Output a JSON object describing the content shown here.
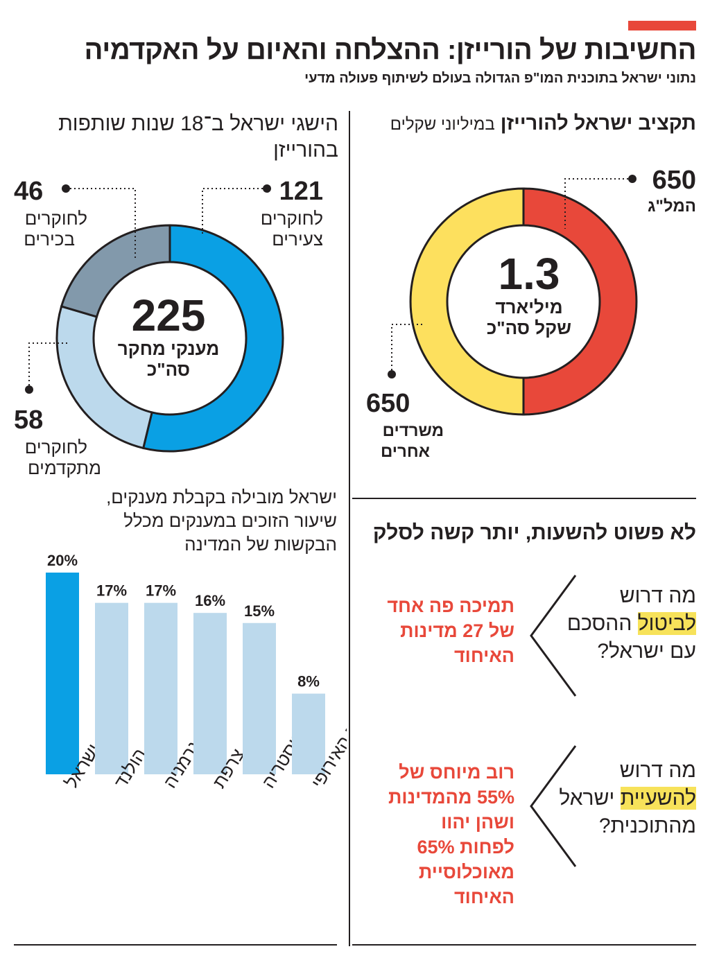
{
  "header": {
    "title": "החשיבות של הורייזן: ההצלחה והאיום על האקדמיה",
    "subtitle": "נתוני ישראל בתוכנית המו\"פ הגדולה בעולם לשיתוף פעולה מדעי"
  },
  "budget": {
    "title_bold": "תקציב ישראל להורייזן",
    "title_light": "במיליוני שקלים",
    "center_value": "1.3",
    "center_line1": "מיליארד",
    "center_line2": "שקל סה\"כ",
    "slice1_value": "650",
    "slice1_label": "המל\"ג",
    "slice2_value": "650",
    "slice2_label_line1": "משרדים",
    "slice2_label_line2": "אחרים",
    "colors": {
      "slice1": "#e8483a",
      "slice2": "#fde05e"
    }
  },
  "grants": {
    "title_line1": "הישגי ישראל ב־18 שנות שותפות",
    "title_line2": "בהורייזן",
    "center_value": "225",
    "center_line1": "מענקי מחקר",
    "center_line2": "סה\"כ",
    "young_value": "121",
    "young_line1": "לחוקרים",
    "young_line2": "צעירים",
    "senior_value": "46",
    "senior_line1": "לחוקרים",
    "senior_line2": "בכירים",
    "advanced_value": "58",
    "advanced_line1": "לחוקרים",
    "advanced_line2": "מתקדמים",
    "colors": {
      "young": "#0aa0e4",
      "advanced": "#bcd9ec",
      "senior": "#8299ab"
    }
  },
  "bars": {
    "title_line1": "ישראל מובילה בקבלת מענקים,",
    "title_line2": "שיעור הזוכים במענקים מכלל",
    "title_line3": "הבקשות של המדינה"
  },
  "chart_data": [
    {
      "type": "pie",
      "title": "תקציב ישראל להורייזן",
      "unit": "במיליוני שקלים",
      "categories": [
        "המל\"ג",
        "משרדים אחרים"
      ],
      "values": [
        650,
        650
      ]
    },
    {
      "type": "pie",
      "title": "הישגי ישראל ב־18 שנות שותפות בהורייזן",
      "categories": [
        "לחוקרים צעירים",
        "לחוקרים מתקדמים",
        "לחוקרים בכירים"
      ],
      "values": [
        121,
        58,
        46
      ]
    },
    {
      "type": "bar",
      "title": "ישראל מובילה בקבלת מענקים, שיעור הזוכים במענקים מכלל הבקשות של המדינה",
      "categories": [
        "ישראל",
        "הולנד",
        "גרמניה",
        "צרפת",
        "אוסטריה",
        "ממוצע באיחוד האירופי"
      ],
      "values": [
        20,
        17,
        17,
        16,
        15,
        8
      ],
      "value_labels": [
        "20%",
        "17%",
        "17%",
        "16%",
        "15%",
        "8%"
      ],
      "ylim": [
        0,
        20
      ],
      "colors": [
        "#0aa0e4",
        "#bcd9ec",
        "#bcd9ec",
        "#bcd9ec",
        "#bcd9ec",
        "#bcd9ec"
      ]
    }
  ],
  "sanctions": {
    "title": "לא פשוט להשעות, יותר קשה לסלק",
    "q1_line1": "מה דרוש",
    "q1_highlight": "לביטול",
    "q1_line2_rest": "ההסכם",
    "q1_line3": "עם ישראל?",
    "a1_line1": "תמיכה פה אחד",
    "a1_line2": "של 27 מדינות",
    "a1_line3": "האיחוד",
    "q2_line1": "מה דרוש",
    "q2_highlight": "להשעיית",
    "q2_line2_rest": "ישראל",
    "q2_line3": "מהתוכנית?",
    "a2_line1": "רוב מיוחס של",
    "a2_line2": "55% מהמדינות",
    "a2_line3": "ושהן יהוו",
    "a2_line4": "לפחות 65%",
    "a2_line5": "מאוכלוסיית",
    "a2_line6": "האיחוד"
  }
}
